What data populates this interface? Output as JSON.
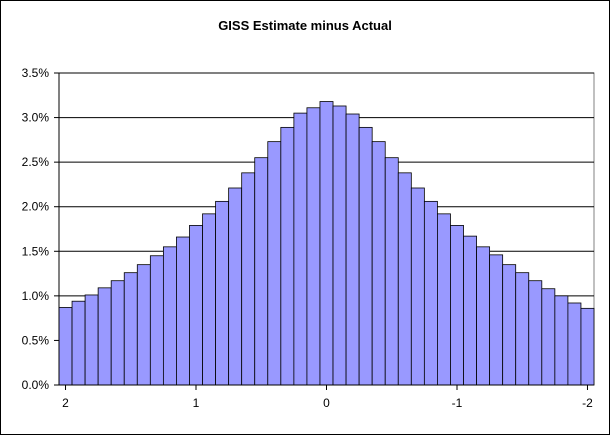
{
  "chart_data": {
    "type": "bar",
    "title": "GISS Estimate minus Actual",
    "xlabel": "",
    "ylabel": "",
    "ylim": [
      0,
      0.035
    ],
    "yticks": [
      "0.0%",
      "0.5%",
      "1.0%",
      "1.5%",
      "2.0%",
      "2.5%",
      "3.0%",
      "3.5%"
    ],
    "xticks": [
      {
        "label": "2",
        "x": 2
      },
      {
        "label": "1",
        "x": 1
      },
      {
        "label": "0",
        "x": 0
      },
      {
        "label": "-1",
        "x": -1
      },
      {
        "label": "-2",
        "x": -2
      }
    ],
    "x": [
      2.0,
      1.9,
      1.8,
      1.7,
      1.6,
      1.5,
      1.4,
      1.3,
      1.2,
      1.1,
      1.0,
      0.9,
      0.8,
      0.7,
      0.6,
      0.5,
      0.4,
      0.3,
      0.2,
      0.1,
      0.0,
      -0.1,
      -0.2,
      -0.3,
      -0.4,
      -0.5,
      -0.6,
      -0.7,
      -0.8,
      -0.9,
      -1.0,
      -1.1,
      -1.2,
      -1.3,
      -1.4,
      -1.5,
      -1.6,
      -1.7,
      -1.8,
      -1.9,
      -2.0
    ],
    "values": [
      0.0087,
      0.0094,
      0.0101,
      0.0109,
      0.0117,
      0.0126,
      0.0135,
      0.0145,
      0.0155,
      0.0166,
      0.0179,
      0.0192,
      0.0206,
      0.0221,
      0.0238,
      0.0255,
      0.0273,
      0.0289,
      0.0305,
      0.0311,
      0.0318,
      0.0313,
      0.0304,
      0.0289,
      0.0273,
      0.0255,
      0.0238,
      0.0221,
      0.0206,
      0.0192,
      0.0179,
      0.0167,
      0.0155,
      0.0146,
      0.0135,
      0.0126,
      0.0117,
      0.0108,
      0.01,
      0.0092,
      0.0086
    ],
    "grid": true,
    "legend": "none",
    "bar_color": "#9999ff",
    "bar_edge_color": "#000000"
  }
}
